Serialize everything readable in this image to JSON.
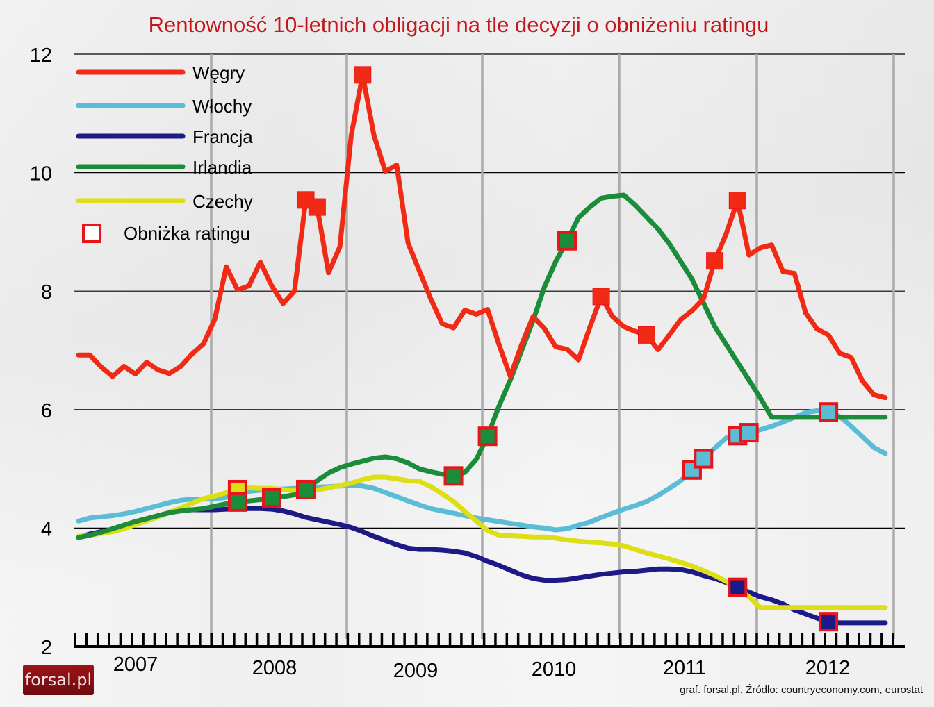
{
  "title": "Rentowność 10-letnich obligacji na tle decyzji o obniżeniu ratingu",
  "logo": "forsal.pl",
  "source": "graf. forsal.pl,   Źródło: countryeconomy.com, eurostat",
  "legend": {
    "items": [
      {
        "label": "Węgry",
        "color": "#f02a14"
      },
      {
        "label": "Włochy",
        "color": "#5bbcd6"
      },
      {
        "label": "Francja",
        "color": "#1c1a86"
      },
      {
        "label": "Irlandia",
        "color": "#1a8c3a"
      },
      {
        "label": "Czechy",
        "color": "#dede14"
      }
    ],
    "marker_label": "Obniżka ratingu",
    "marker_border": "#e8141a"
  },
  "chart_data": {
    "type": "line",
    "title": "Rentowność 10-letnich obligacji na tle decyzji o obniżeniu ratingu",
    "xlabel": "",
    "ylabel": "",
    "ylim": [
      2,
      12
    ],
    "yticks": [
      2,
      4,
      6,
      8,
      10,
      12
    ],
    "xticks": [
      "2007",
      "2008",
      "2009",
      "2010",
      "2011",
      "2012"
    ],
    "x_unit": "month index (0 = Jan 2007, 71 = Dec 2012)",
    "grid": {
      "horizontal": true,
      "vertical_year_lines": true
    },
    "legend_position": "upper-left",
    "series": [
      {
        "name": "Węgry",
        "color": "#f02a14",
        "values": [
          6.92,
          6.92,
          6.72,
          6.56,
          6.73,
          6.6,
          6.8,
          6.67,
          6.61,
          6.73,
          6.94,
          7.11,
          7.53,
          8.41,
          8.02,
          8.09,
          8.49,
          8.09,
          7.79,
          8.0,
          9.54,
          9.42,
          8.31,
          8.75,
          10.63,
          11.65,
          10.63,
          10.02,
          10.13,
          8.81,
          8.34,
          7.87,
          7.45,
          7.38,
          7.68,
          7.61,
          7.69,
          7.1,
          6.56,
          7.1,
          7.57,
          7.37,
          7.06,
          7.02,
          6.84,
          7.39,
          7.91,
          7.57,
          7.4,
          7.32,
          7.26,
          7.01,
          7.26,
          7.52,
          7.67,
          7.87,
          8.51,
          8.97,
          9.53,
          8.61,
          8.73,
          8.78,
          8.33,
          8.3,
          7.63,
          7.36,
          7.26,
          6.95,
          6.88,
          6.48,
          6.25,
          6.2
        ],
        "downgrades": [
          20,
          21,
          25,
          46,
          50,
          56,
          58
        ]
      },
      {
        "name": "Włochy",
        "color": "#5bbcd6",
        "values": [
          4.12,
          4.17,
          4.19,
          4.21,
          4.24,
          4.28,
          4.33,
          4.38,
          4.43,
          4.47,
          4.49,
          4.49,
          4.49,
          4.52,
          4.56,
          4.62,
          4.64,
          4.66,
          4.66,
          4.67,
          4.68,
          4.69,
          4.7,
          4.71,
          4.72,
          4.71,
          4.67,
          4.6,
          4.53,
          4.46,
          4.39,
          4.33,
          4.29,
          4.25,
          4.21,
          4.17,
          4.14,
          4.11,
          4.08,
          4.05,
          4.02,
          4.0,
          3.97,
          3.99,
          4.05,
          4.1,
          4.18,
          4.25,
          4.32,
          4.38,
          4.45,
          4.55,
          4.67,
          4.8,
          4.98,
          5.17,
          5.35,
          5.52,
          5.56,
          5.61,
          5.66,
          5.72,
          5.79,
          5.87,
          5.95,
          5.98,
          5.96,
          5.88,
          5.72,
          5.54,
          5.36,
          5.26
        ],
        "downgrades": [
          54,
          55,
          58,
          59,
          66
        ]
      },
      {
        "name": "Francja",
        "color": "#1c1a86",
        "values": [
          3.84,
          3.9,
          3.94,
          3.98,
          4.04,
          4.09,
          4.15,
          4.21,
          4.26,
          4.3,
          4.31,
          4.31,
          4.31,
          4.32,
          4.33,
          4.33,
          4.33,
          4.32,
          4.29,
          4.24,
          4.18,
          4.14,
          4.1,
          4.06,
          4.01,
          3.94,
          3.86,
          3.79,
          3.72,
          3.66,
          3.64,
          3.64,
          3.63,
          3.61,
          3.58,
          3.52,
          3.44,
          3.37,
          3.29,
          3.21,
          3.15,
          3.12,
          3.12,
          3.13,
          3.16,
          3.19,
          3.22,
          3.24,
          3.26,
          3.27,
          3.29,
          3.31,
          3.31,
          3.3,
          3.26,
          3.2,
          3.15,
          3.08,
          3.0,
          2.92,
          2.84,
          2.79,
          2.72,
          2.62,
          2.55,
          2.48,
          2.42,
          2.4,
          2.4,
          2.4,
          2.4,
          2.4
        ],
        "downgrades": [
          58,
          66
        ]
      },
      {
        "name": "Irlandia",
        "color": "#1a8c3a",
        "values": [
          3.84,
          3.88,
          3.93,
          3.99,
          4.05,
          4.11,
          4.16,
          4.21,
          4.26,
          4.29,
          4.31,
          4.33,
          4.37,
          4.41,
          4.44,
          4.46,
          4.48,
          4.51,
          4.53,
          4.56,
          4.65,
          4.8,
          4.93,
          5.02,
          5.08,
          5.13,
          5.18,
          5.2,
          5.17,
          5.1,
          5.0,
          4.95,
          4.91,
          4.88,
          4.94,
          5.16,
          5.55,
          6.06,
          6.5,
          7.0,
          7.5,
          8.07,
          8.5,
          8.85,
          9.24,
          9.42,
          9.57,
          9.6,
          9.62,
          9.45,
          9.25,
          9.05,
          8.8,
          8.5,
          8.2,
          7.8,
          7.4,
          7.1,
          6.8,
          6.5,
          6.2,
          5.87,
          5.87,
          5.87,
          5.87,
          5.87,
          5.87,
          5.87,
          5.87,
          5.87,
          5.87,
          5.87
        ],
        "downgrades": [
          14,
          17,
          20,
          33,
          36,
          43
        ]
      },
      {
        "name": "Czechy",
        "color": "#dede14",
        "values": [
          3.86,
          3.88,
          3.91,
          3.94,
          3.99,
          4.06,
          4.12,
          4.19,
          4.27,
          4.34,
          4.42,
          4.5,
          4.54,
          4.6,
          4.65,
          4.68,
          4.67,
          4.67,
          4.65,
          4.63,
          4.63,
          4.64,
          4.68,
          4.72,
          4.76,
          4.82,
          4.86,
          4.86,
          4.83,
          4.8,
          4.79,
          4.7,
          4.58,
          4.45,
          4.28,
          4.12,
          3.96,
          3.88,
          3.87,
          3.86,
          3.85,
          3.85,
          3.83,
          3.8,
          3.78,
          3.76,
          3.75,
          3.73,
          3.7,
          3.64,
          3.58,
          3.53,
          3.48,
          3.42,
          3.36,
          3.28,
          3.2,
          3.1,
          2.98,
          2.84,
          2.66,
          2.66,
          2.66,
          2.66,
          2.66,
          2.66,
          2.66,
          2.66,
          2.66,
          2.66,
          2.66,
          2.66
        ],
        "downgrades": [
          14
        ]
      }
    ]
  }
}
